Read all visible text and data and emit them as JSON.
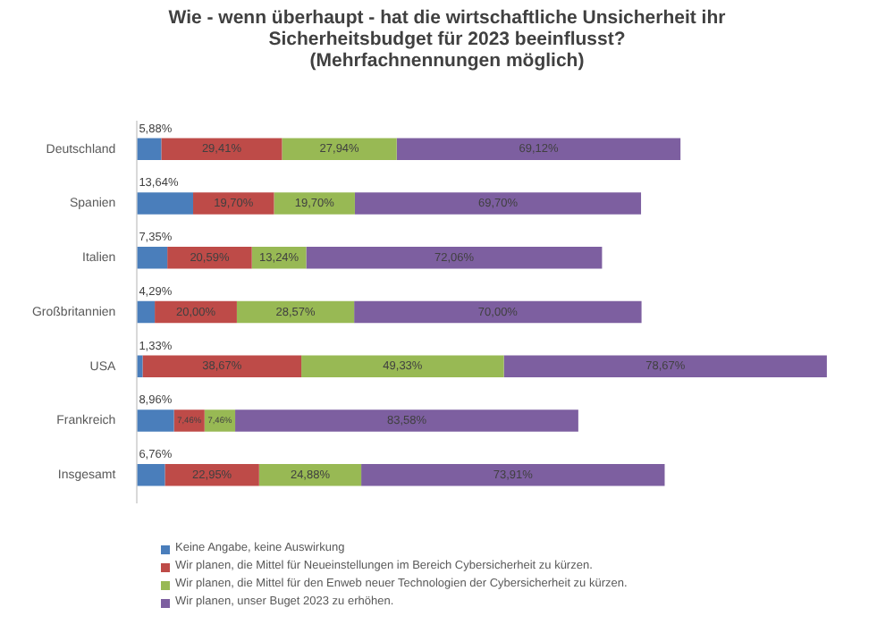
{
  "chart_data": {
    "type": "bar",
    "orientation": "horizontal",
    "stacked": true,
    "title": "Wie - wenn überhaupt - hat die wirtschaftliche Unsicherheit ihr Sicherheitsbudget für 2023 beeinflusst?",
    "subtitle": "(Mehrfachnennungen möglich)",
    "categories": [
      "Deutschland",
      "Spanien",
      "Italien",
      "Großbritannien",
      "USA",
      "Frankreich",
      "Insgesamt"
    ],
    "tick_labels": "y",
    "legend": "bottom",
    "series": [
      {
        "name": "Keine Angabe, keine Auswirkung",
        "color": "#4a7ebb",
        "values": [
          5.88,
          13.64,
          7.35,
          4.29,
          1.33,
          8.96,
          6.76
        ],
        "value_labels": [
          "5,88%",
          "13,64%",
          "7,35%",
          "4,29%",
          "1,33%",
          "8,96%",
          "6,76%"
        ]
      },
      {
        "name": "Wir planen, die Mittel für Neueinstellungen im Bereich Cybersicherheit zu kürzen.",
        "color": "#be4b48",
        "values": [
          29.41,
          19.7,
          20.59,
          20.0,
          38.67,
          7.46,
          22.95
        ],
        "value_labels": [
          "29,41%",
          "19,70%",
          "20,59%",
          "20,00%",
          "38,67%",
          "7,46%",
          "22,95%"
        ]
      },
      {
        "name": "Wir planen, die Mittel für den Enweb neuer Technologien der Cybersicherheit zu kürzen.",
        "color": "#98b954",
        "values": [
          27.94,
          19.7,
          13.24,
          28.57,
          49.33,
          7.46,
          24.88
        ],
        "value_labels": [
          "27,94%",
          "19,70%",
          "13,24%",
          "28,57%",
          "49,33%",
          "7,46%",
          "24,88%"
        ]
      },
      {
        "name": "Wir planen, unser Buget 2023 zu erhöhen.",
        "color": "#7d5fa0",
        "values": [
          69.12,
          69.7,
          72.06,
          70.0,
          78.67,
          83.58,
          73.91
        ],
        "value_labels": [
          "69,12%",
          "69,70%",
          "72,06%",
          "70,00%",
          "78,67%",
          "83,58%",
          "73,91%"
        ]
      }
    ]
  }
}
